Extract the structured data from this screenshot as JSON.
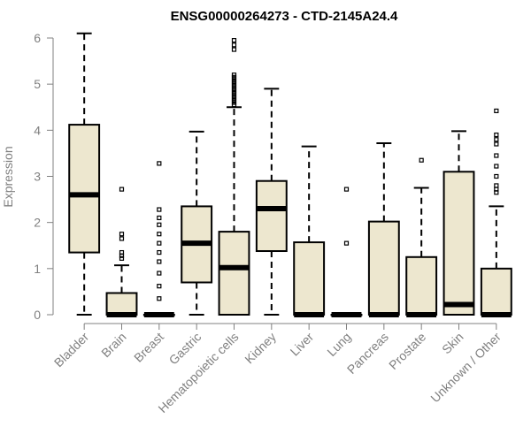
{
  "chart_data": {
    "type": "boxplot",
    "title": "ENSG00000264273 - CTD-2145A24.4",
    "xlabel": "",
    "ylabel": "Expression",
    "ylim": [
      0,
      6
    ],
    "yticks": [
      0,
      1,
      2,
      3,
      4,
      5,
      6
    ],
    "box_fill": "#ede7cf",
    "categories": [
      "Bladder",
      "Brain",
      "Breast",
      "Gastric",
      "Hematopoietic cells",
      "Kidney",
      "Liver",
      "Lung",
      "Pancreas",
      "Prostate",
      "Skin",
      "Unknown / Other"
    ],
    "boxes": [
      {
        "category": "Bladder",
        "min": 0,
        "q1": 1.35,
        "median": 2.6,
        "q3": 4.12,
        "max": 6.1,
        "outliers": []
      },
      {
        "category": "Brain",
        "min": 0,
        "q1": 0,
        "median": 0,
        "q3": 0.47,
        "max": 1.07,
        "outliers": [
          1.22,
          1.28,
          1.35,
          1.65,
          1.75,
          2.72
        ]
      },
      {
        "category": "Breast",
        "min": 0,
        "q1": 0,
        "median": 0,
        "q3": 0,
        "max": 0,
        "outliers": [
          0.35,
          0.62,
          0.9,
          1.15,
          1.35,
          1.55,
          1.75,
          1.95,
          2.1,
          2.28,
          3.28
        ]
      },
      {
        "category": "Gastric",
        "min": 0,
        "q1": 0.7,
        "median": 1.55,
        "q3": 2.35,
        "max": 3.97,
        "outliers": []
      },
      {
        "category": "Hematopoietic cells",
        "min": 0,
        "q1": 0,
        "median": 1.02,
        "q3": 1.8,
        "max": 4.5,
        "outliers": [
          4.55,
          4.6,
          4.65,
          4.7,
          4.75,
          4.8,
          4.85,
          4.9,
          4.95,
          5.0,
          5.05,
          5.1,
          5.15,
          5.2,
          5.75,
          5.85,
          5.95
        ]
      },
      {
        "category": "Kidney",
        "min": 0,
        "q1": 1.38,
        "median": 2.3,
        "q3": 2.9,
        "max": 4.9,
        "outliers": []
      },
      {
        "category": "Liver",
        "min": 0,
        "q1": 0,
        "median": 0,
        "q3": 1.57,
        "max": 3.65,
        "outliers": []
      },
      {
        "category": "Lung",
        "min": 0,
        "q1": 0,
        "median": 0,
        "q3": 0,
        "max": 0,
        "outliers": [
          1.55,
          2.72
        ]
      },
      {
        "category": "Pancreas",
        "min": 0,
        "q1": 0,
        "median": 0,
        "q3": 2.02,
        "max": 3.72,
        "outliers": []
      },
      {
        "category": "Prostate",
        "min": 0,
        "q1": 0,
        "median": 0,
        "q3": 1.25,
        "max": 2.75,
        "outliers": [
          3.35
        ]
      },
      {
        "category": "Skin",
        "min": 0,
        "q1": 0,
        "median": 0.22,
        "q3": 3.1,
        "max": 3.98,
        "outliers": []
      },
      {
        "category": "Unknown / Other",
        "min": 0,
        "q1": 0,
        "median": 0,
        "q3": 1.0,
        "max": 2.35,
        "outliers": [
          2.65,
          2.72,
          2.8,
          3.0,
          3.22,
          3.45,
          3.7,
          3.8,
          3.9,
          4.42
        ]
      }
    ]
  }
}
